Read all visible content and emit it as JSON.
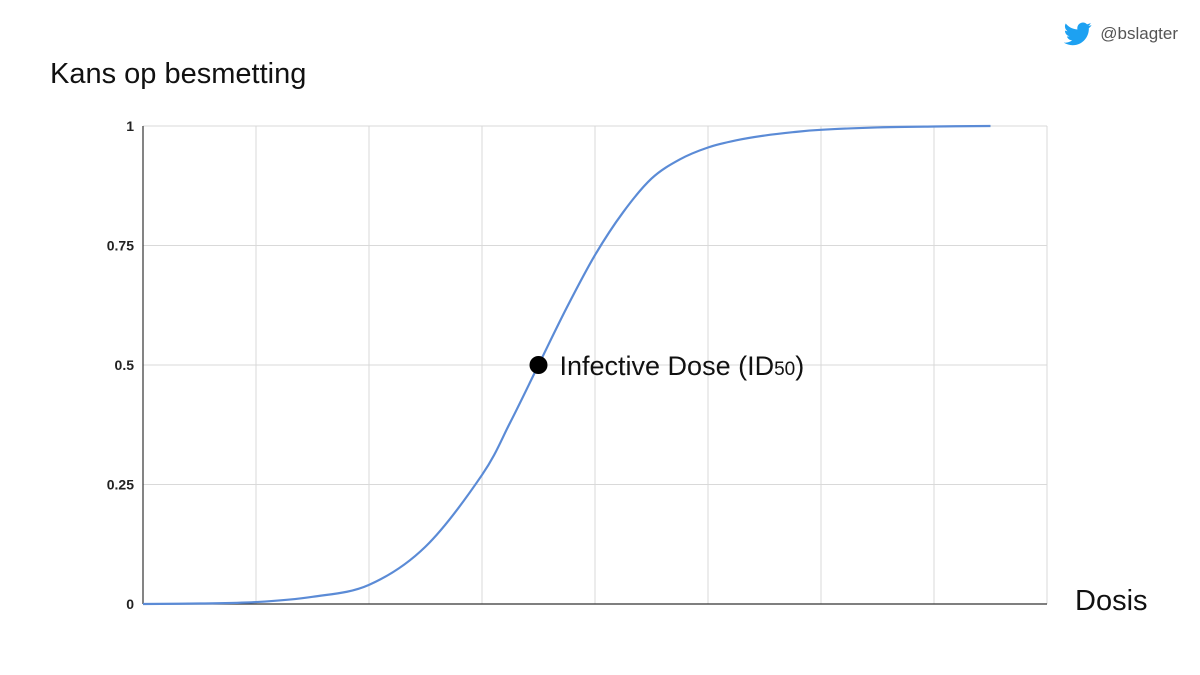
{
  "credit": {
    "handle": "@bslagter",
    "icon": "twitter-bird-icon",
    "icon_color": "#1DA1F2"
  },
  "chart_data": {
    "type": "line",
    "title": "",
    "ylabel": "Kans op besmetting",
    "xlabel": "Dosis",
    "ylim": [
      0,
      1
    ],
    "yticks": [
      "0",
      "0.25",
      "0.5",
      "0.75",
      "1"
    ],
    "grid": true,
    "series": [
      {
        "color": "#5b8bd6",
        "x": [
          0,
          0.5,
          1,
          1.5,
          2,
          2.5,
          3,
          3.25,
          3.5,
          3.75,
          4,
          4.25,
          4.5,
          4.75,
          5,
          5.25,
          5.5,
          5.75,
          6,
          6.5,
          7,
          7.5
        ],
        "values": [
          0,
          0.001,
          0.004,
          0.015,
          0.04,
          0.12,
          0.27,
          0.38,
          0.5,
          0.62,
          0.73,
          0.82,
          0.89,
          0.93,
          0.955,
          0.97,
          0.98,
          0.987,
          0.992,
          0.997,
          0.999,
          1
        ]
      }
    ],
    "annotation": {
      "x": 3.5,
      "y": 0.5,
      "text": "Infective Dose (ID",
      "subscript": "50",
      "suffix": ")"
    }
  }
}
